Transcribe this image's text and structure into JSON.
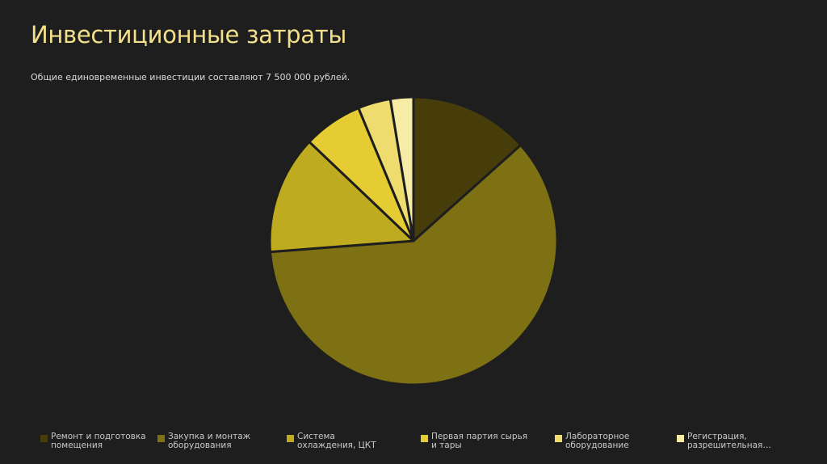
{
  "slide": {
    "title": "Инвестиционные затраты",
    "subtitle": "Общие единовременные инвестиции составляют 7 500 000 рублей."
  },
  "chart_data": {
    "type": "pie",
    "title": "",
    "start_angle_deg": 0,
    "direction": "clockwise",
    "slice_border_color": "#1e1e1e",
    "categories": [
      "Ремонт и подготовка помещения",
      "Закупка и монтаж оборудования",
      "Система охлаждения, ЦКТ",
      "Первая партия сырья и тары",
      "Лабораторное оборудование",
      "Регистрация, разрешительная..."
    ],
    "legend_labels": [
      "Ремонт и подготовка помещения",
      "Закупка и монтаж оборудования",
      "Система охлаждения, ЦКТ",
      "Первая партия сырья и тары",
      "Лабораторное оборудование",
      "Регистрация, разрешительная…"
    ],
    "values": [
      13.5,
      60.8,
      13.4,
      6.7,
      3.7,
      2.6
    ],
    "colors": [
      "#473d0b",
      "#7e7113",
      "#bfab1f",
      "#e5cc33",
      "#eedc6e",
      "#f7eca6"
    ],
    "legend_position": "bottom"
  }
}
